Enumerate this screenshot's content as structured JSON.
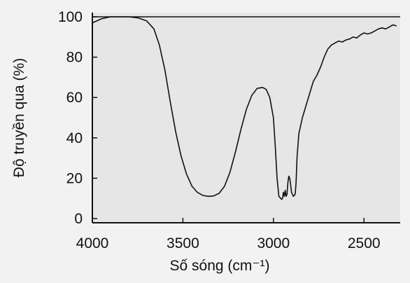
{
  "chart_data": {
    "type": "line",
    "xlabel": "Số sóng (cm⁻¹)",
    "ylabel": "Độ truyền qua (%)",
    "xlim": [
      4000,
      2300
    ],
    "ylim": [
      0,
      100
    ],
    "x_reversed": true,
    "x_ticks": [
      4000,
      3500,
      3000,
      2500
    ],
    "y_ticks": [
      0,
      20,
      40,
      60,
      80,
      100
    ],
    "grid": false,
    "colors": {
      "line": "#111111",
      "plot_bg": "#e6e6e6",
      "axis": "#111111"
    },
    "series": [
      {
        "x": [
          4000,
          3950,
          3900,
          3850,
          3800,
          3750,
          3700,
          3660,
          3630,
          3600,
          3570,
          3540,
          3510,
          3480,
          3450,
          3420,
          3390,
          3360,
          3330,
          3300,
          3270,
          3240,
          3210,
          3180,
          3150,
          3120,
          3090,
          3060,
          3040,
          3020,
          3000,
          2990,
          2980,
          2970,
          2960,
          2955,
          2950,
          2945,
          2940,
          2935,
          2930,
          2925,
          2920,
          2915,
          2910,
          2900,
          2890,
          2880,
          2875,
          2870,
          2860,
          2840,
          2820,
          2800,
          2780,
          2760,
          2740,
          2720,
          2700,
          2680,
          2660,
          2640,
          2620,
          2600,
          2580,
          2560,
          2540,
          2520,
          2500,
          2480,
          2460,
          2440,
          2420,
          2400,
          2380,
          2360,
          2340,
          2320
        ],
        "y": [
          97,
          99,
          100,
          100,
          100,
          99.5,
          98,
          94,
          86,
          74,
          58,
          43,
          31,
          22,
          16,
          13,
          11.5,
          11,
          11.2,
          12.5,
          16,
          23,
          33,
          44,
          54,
          61,
          64.5,
          65,
          64,
          60,
          50,
          36,
          20,
          11,
          10,
          9.5,
          10,
          13,
          11,
          14,
          11,
          12,
          18,
          21,
          20,
          13,
          11,
          12,
          18,
          30,
          42,
          50,
          56,
          62,
          68,
          71,
          75,
          80,
          84,
          86,
          87,
          88,
          87.5,
          88.5,
          89,
          90,
          89.5,
          91,
          92,
          91.5,
          92,
          93,
          94,
          94.5,
          94,
          95,
          96,
          95.5
        ]
      }
    ]
  }
}
